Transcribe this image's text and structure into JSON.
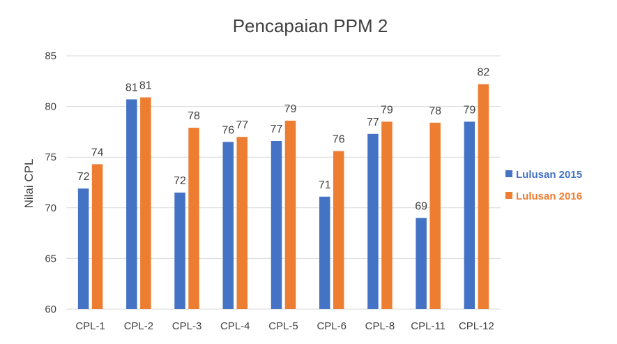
{
  "chart_data": {
    "type": "bar",
    "title": "Pencapaian PPM 2",
    "xlabel": "",
    "ylabel": "Nilai CPL",
    "ylim": [
      60,
      85
    ],
    "yticks": [
      60,
      65,
      70,
      75,
      80,
      85
    ],
    "grid": true,
    "legend_position": "right",
    "categories": [
      "CPL-1",
      "CPL-2",
      "CPL-3",
      "CPL-4",
      "CPL-5",
      "CPL-6",
      "CPL-8",
      "CPL-11",
      "CPL-12"
    ],
    "series": [
      {
        "name": "Lulusan 2015",
        "color": "#4472c4",
        "values": [
          71.9,
          80.7,
          71.5,
          76.5,
          76.6,
          71.1,
          77.3,
          69.0,
          78.5
        ],
        "labels": [
          "72",
          "81",
          "72",
          "76",
          "77",
          "71",
          "77",
          "69",
          "79"
        ]
      },
      {
        "name": "Lulusan 2016",
        "color": "#ed7d31",
        "values": [
          74.3,
          80.9,
          77.9,
          77.0,
          78.6,
          75.6,
          78.5,
          78.4,
          82.2
        ],
        "labels": [
          "74",
          "81",
          "78",
          "77",
          "79",
          "76",
          "79",
          "78",
          "82"
        ]
      }
    ]
  }
}
